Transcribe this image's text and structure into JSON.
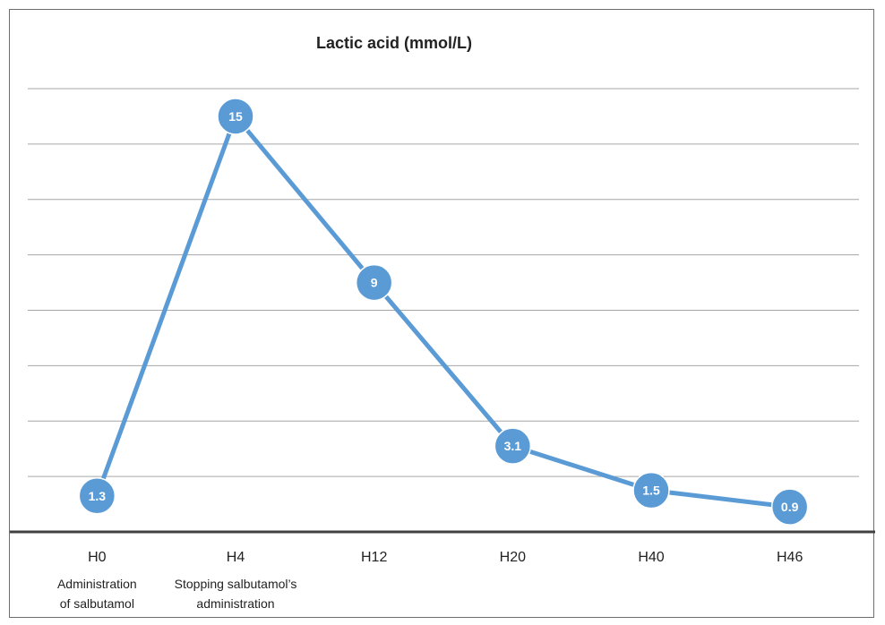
{
  "chart_data": {
    "type": "line",
    "title": "Lactic acid (mmol/L)",
    "categories": [
      "H0",
      "H4",
      "H12",
      "H20",
      "H40",
      "H46"
    ],
    "category_notes": [
      [
        "Administration",
        "of salbutamol"
      ],
      [
        "Stopping salbutamol’s",
        "administration"
      ],
      [],
      [],
      [],
      []
    ],
    "series": [
      {
        "values": [
          1.3,
          15,
          9,
          3.1,
          1.5,
          0.9
        ],
        "labels": [
          "1.3",
          "15",
          "9",
          "3.1",
          "1.5",
          "0.9"
        ]
      }
    ],
    "ylim": [
      0,
      16
    ],
    "gridlines": [
      2,
      4,
      6,
      8,
      10,
      12,
      14,
      16
    ],
    "grid": true,
    "legend": "none",
    "colors": {
      "line": "#5b9bd5",
      "grid": "#a6a6a6",
      "axis": "#404040",
      "text": "#222222",
      "label": "#ffffff"
    }
  }
}
